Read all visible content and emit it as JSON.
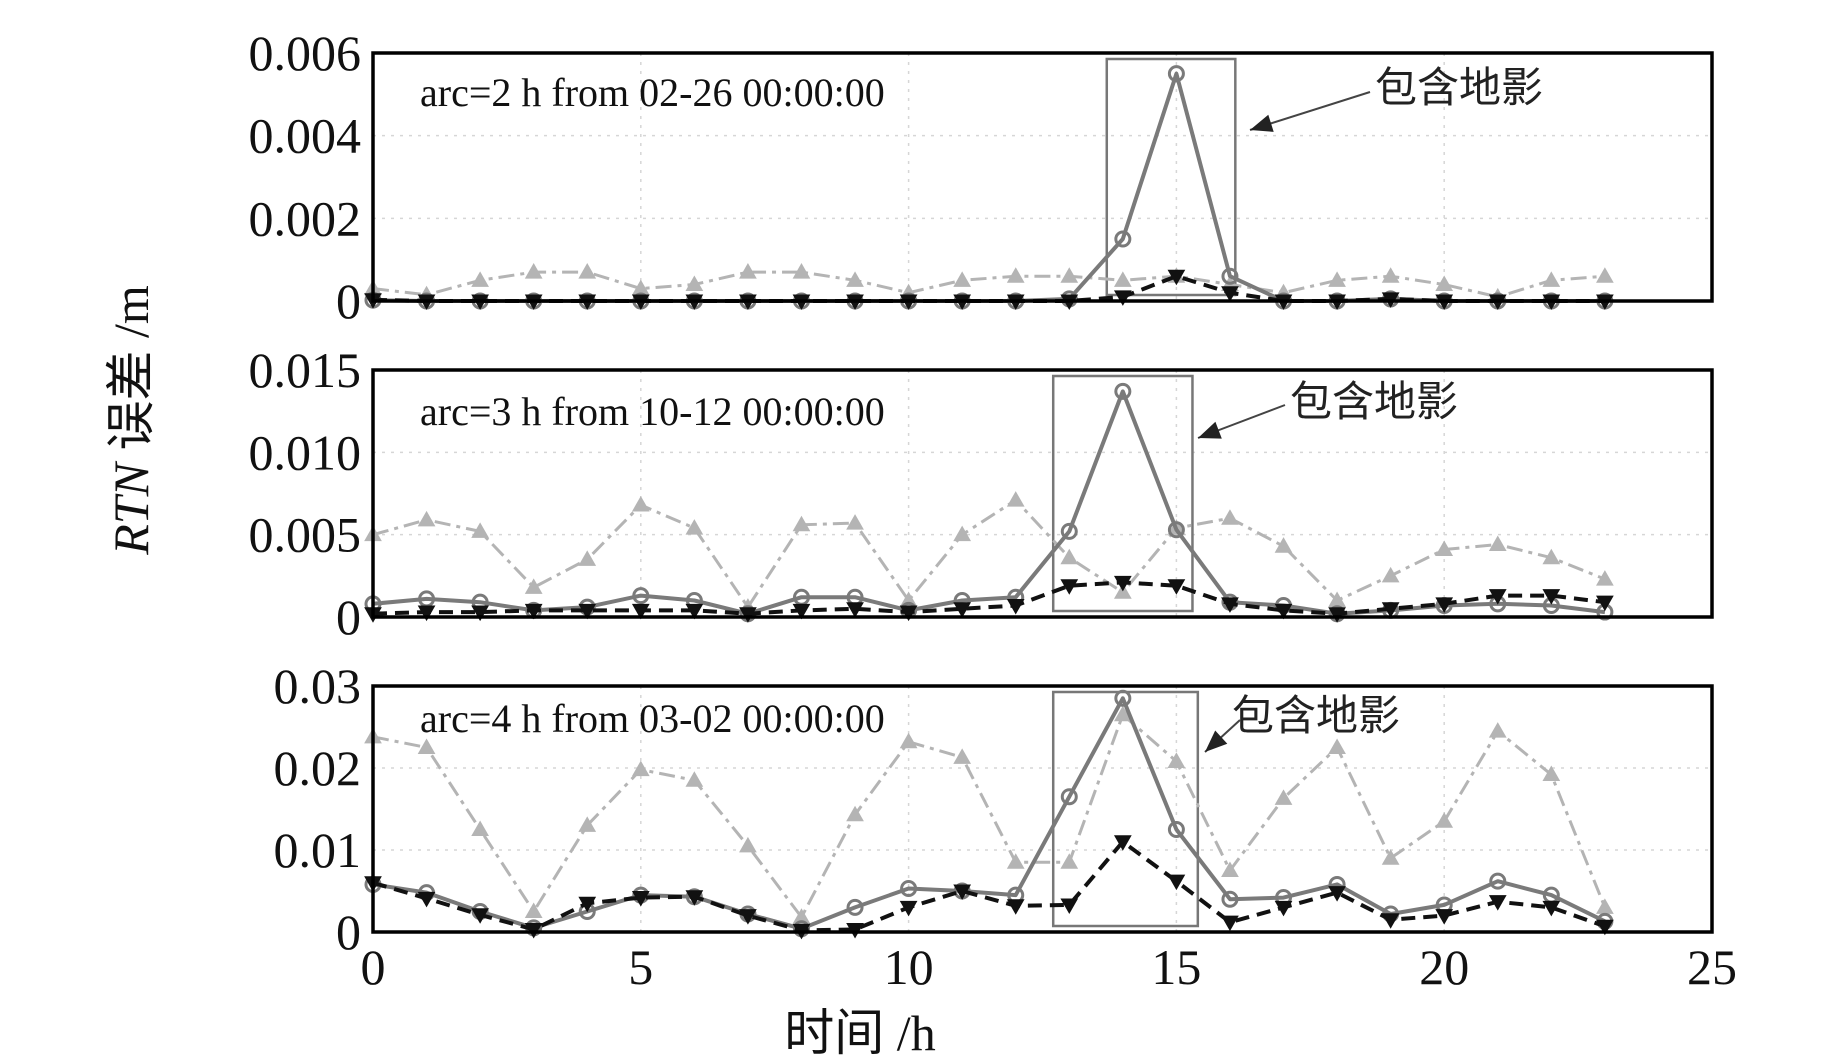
{
  "chart_data": {
    "type": "line",
    "xlabel": "时间 /h",
    "ylabel_italic": "RTN",
    "ylabel_rest": " 误差 /m",
    "xlim": [
      0,
      25
    ],
    "xticks": [
      "0",
      "5",
      "10",
      "15",
      "20",
      "25"
    ],
    "grid": true,
    "series_styles": [
      {
        "color": "#7a7a7a",
        "dash": "",
        "marker": "circle",
        "width": 4
      },
      {
        "color": "#111111",
        "dash": "14 8",
        "marker": "triangle-down",
        "width": 4
      },
      {
        "color": "#b4b4b4",
        "dash": "16 6 4 6",
        "marker": "triangle-up",
        "width": 3
      }
    ],
    "panels": [
      {
        "label": "arc=2 h from 02-26 00:00:00",
        "annotation": "包含地影",
        "eclipse_window": [
          13.7,
          16.1
        ],
        "ylim": [
          0,
          0.006
        ],
        "yticks": [
          0,
          0.002,
          0.004,
          0.006
        ],
        "ytick_labels": [
          "0",
          "0.002",
          "0.004",
          "0.006"
        ],
        "x": [
          0,
          1,
          2,
          3,
          4,
          5,
          6,
          7,
          8,
          9,
          10,
          11,
          12,
          13,
          14,
          15,
          16,
          17,
          18,
          19,
          20,
          21,
          22,
          23
        ],
        "series": [
          {
            "values": [
              2e-05,
              0,
              0,
              0,
              0,
              0,
              0,
              0,
              0,
              0,
              0,
              0,
              0,
              5e-05,
              0.0015,
              0.0055,
              0.0006,
              0,
              0,
              5e-05,
              0,
              0,
              0,
              0
            ]
          },
          {
            "values": [
              3e-05,
              0,
              0,
              0,
              0,
              0,
              0,
              0,
              0,
              0,
              0,
              0,
              0,
              0,
              0.0001,
              0.0006,
              0.0002,
              0,
              0,
              5e-05,
              0,
              0,
              0,
              0
            ]
          },
          {
            "values": [
              0.0003,
              0.00015,
              0.0005,
              0.0007,
              0.0007,
              0.0003,
              0.0004,
              0.0007,
              0.0007,
              0.0005,
              0.0002,
              0.0005,
              0.0006,
              0.0006,
              0.0005,
              0.0006,
              0.0004,
              0.0002,
              0.0005,
              0.0006,
              0.0004,
              0.0001,
              0.0005,
              0.0006
            ]
          }
        ]
      },
      {
        "label": "arc=3 h from 10-12 00:00:00",
        "annotation": "包含地影",
        "eclipse_window": [
          12.7,
          15.3
        ],
        "ylim": [
          0,
          0.015
        ],
        "yticks": [
          0,
          0.005,
          0.01,
          0.015
        ],
        "ytick_labels": [
          "0",
          "0.005",
          "0.010",
          "0.015"
        ],
        "x": [
          0,
          1,
          2,
          3,
          4,
          5,
          6,
          7,
          8,
          9,
          10,
          11,
          12,
          13,
          14,
          15,
          16,
          17,
          18,
          19,
          20,
          21,
          22,
          23
        ],
        "series": [
          {
            "values": [
              0.0008,
              0.0011,
              0.0009,
              0.0004,
              0.0006,
              0.0013,
              0.001,
              0.0002,
              0.0012,
              0.0012,
              0.0004,
              0.001,
              0.0012,
              0.0052,
              0.0137,
              0.0053,
              0.0009,
              0.0007,
              0.0002,
              0.0004,
              0.0007,
              0.0008,
              0.0007,
              0.0003
            ]
          },
          {
            "values": [
              0.0002,
              0.0003,
              0.0003,
              0.0004,
              0.0004,
              0.0004,
              0.0004,
              0.0002,
              0.0004,
              0.0005,
              0.0003,
              0.0005,
              0.0007,
              0.0019,
              0.0021,
              0.0019,
              0.0008,
              0.0004,
              0.0002,
              0.0005,
              0.0008,
              0.0013,
              0.0013,
              0.0009
            ]
          },
          {
            "values": [
              0.005,
              0.0059,
              0.0052,
              0.0018,
              0.0035,
              0.0068,
              0.0054,
              0.0006,
              0.0056,
              0.0057,
              0.001,
              0.005,
              0.0071,
              0.0036,
              0.0015,
              0.0054,
              0.006,
              0.0043,
              0.001,
              0.0025,
              0.0041,
              0.0044,
              0.0036,
              0.0023
            ]
          }
        ]
      },
      {
        "label": "arc=4 h from 03-02 00:00:00",
        "annotation": "包含地影",
        "eclipse_window": [
          12.7,
          15.4
        ],
        "ylim": [
          0,
          0.03
        ],
        "yticks": [
          0,
          0.01,
          0.02,
          0.03
        ],
        "ytick_labels": [
          "0",
          "0.01",
          "0.02",
          "0.03"
        ],
        "x": [
          0,
          1,
          2,
          3,
          4,
          5,
          6,
          7,
          8,
          9,
          10,
          11,
          12,
          13,
          14,
          15,
          16,
          17,
          18,
          19,
          20,
          21,
          22,
          23
        ],
        "series": [
          {
            "values": [
              0.0058,
              0.0048,
              0.0025,
              0.0005,
              0.0025,
              0.0045,
              0.0043,
              0.0022,
              0.0004,
              0.003,
              0.0053,
              0.005,
              0.0045,
              0.0165,
              0.0285,
              0.0125,
              0.004,
              0.0042,
              0.0058,
              0.0022,
              0.0033,
              0.0062,
              0.0045,
              0.0013
            ]
          },
          {
            "values": [
              0.006,
              0.0041,
              0.0021,
              0.0003,
              0.0035,
              0.0042,
              0.0043,
              0.002,
              0.0002,
              0.0003,
              0.003,
              0.005,
              0.0032,
              0.0033,
              0.011,
              0.0062,
              0.0012,
              0.003,
              0.0048,
              0.0015,
              0.002,
              0.0037,
              0.003,
              0.0007
            ]
          },
          {
            "values": [
              0.0238,
              0.0225,
              0.0125,
              0.0025,
              0.013,
              0.0198,
              0.0185,
              0.0105,
              0.0018,
              0.0143,
              0.0232,
              0.0213,
              0.0085,
              0.0085,
              0.0265,
              0.0208,
              0.0075,
              0.0163,
              0.0225,
              0.009,
              0.0135,
              0.0245,
              0.0192,
              0.003
            ]
          }
        ]
      }
    ]
  }
}
